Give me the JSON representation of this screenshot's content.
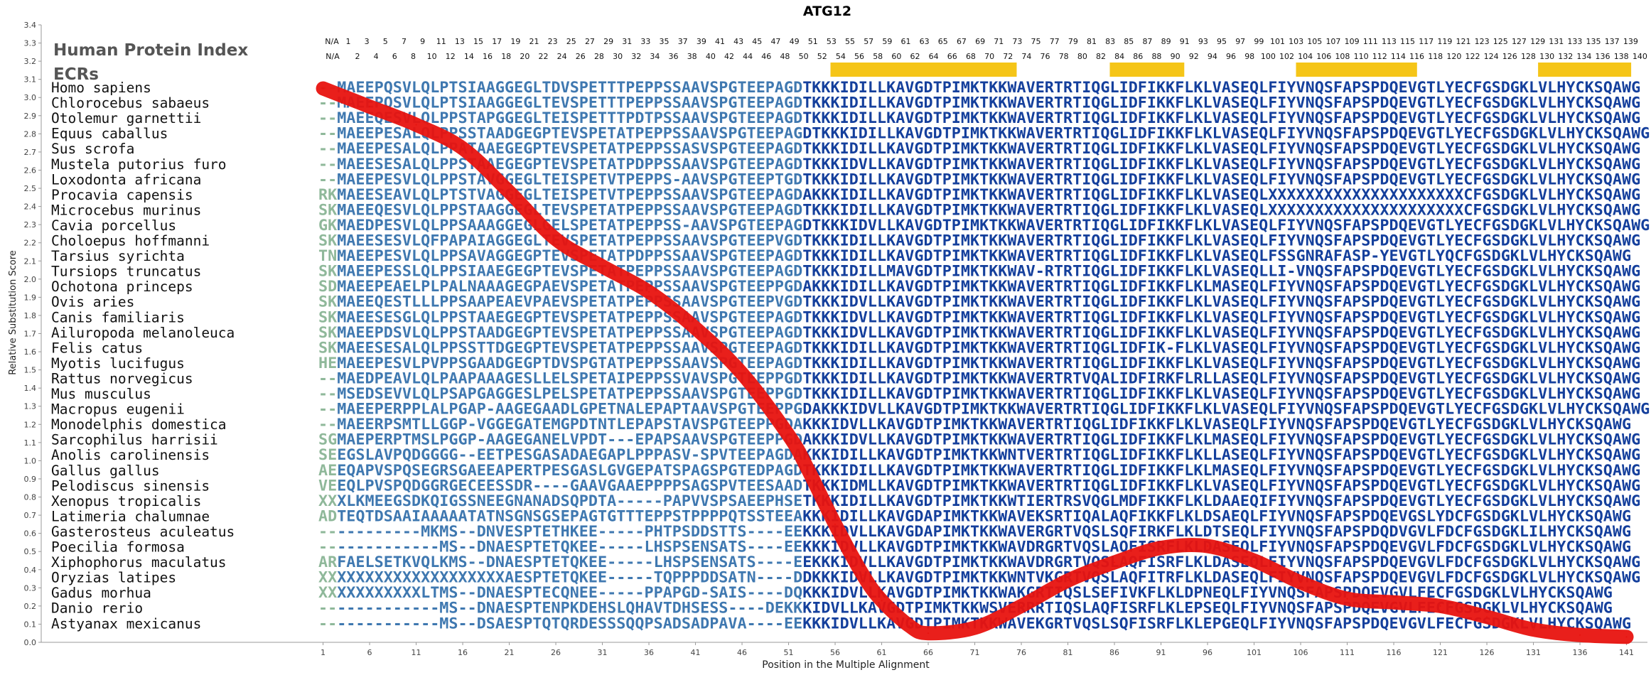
{
  "chart_data": {
    "type": "line",
    "title": "ATG12",
    "xlabel": "Position in the Multiple Alignment",
    "ylabel": "Relative Substitution Score",
    "ylim": [
      0.0,
      3.4
    ],
    "y_ticks": [
      "0.0",
      "0.1",
      "0.2",
      "0.3",
      "0.4",
      "0.5",
      "0.6",
      "0.7",
      "0.8",
      "0.9",
      "1.0",
      "1.1",
      "1.2",
      "1.3",
      "1.4",
      "1.5",
      "1.6",
      "1.7",
      "1.8",
      "1.9",
      "2.0",
      "2.1",
      "2.2",
      "2.3",
      "2.4",
      "2.5",
      "2.6",
      "2.7",
      "2.8",
      "2.9",
      "3.0",
      "3.1",
      "3.2",
      "3.3",
      "3.4"
    ],
    "x_tick_labels": [
      "1",
      "6",
      "11",
      "16",
      "21",
      "26",
      "31",
      "36",
      "41",
      "46",
      "51",
      "56",
      "61",
      "66",
      "71",
      "76",
      "81",
      "86",
      "91",
      "96",
      "101",
      "106",
      "111",
      "116",
      "121",
      "126",
      "131",
      "136",
      "141"
    ],
    "alignment_length": 141,
    "header_index_label": "Human Protein Index",
    "ecr_label": "ECRs",
    "human_index_odd": [
      "N/A",
      "1",
      "3",
      "5",
      "7",
      "9",
      "11",
      "13",
      "15",
      "17",
      "19",
      "21",
      "23",
      "25",
      "27",
      "29",
      "31",
      "33",
      "35",
      "37",
      "39",
      "41",
      "43",
      "45",
      "47",
      "49",
      "51",
      "53",
      "55",
      "57",
      "59",
      "61",
      "63",
      "65",
      "67",
      "69",
      "71",
      "73",
      "75",
      "77",
      "79",
      "81",
      "83",
      "85",
      "87",
      "89",
      "91",
      "93",
      "95",
      "97",
      "99",
      "101",
      "103",
      "105",
      "107",
      "109",
      "111",
      "113",
      "115",
      "117",
      "119",
      "121",
      "123",
      "125",
      "127",
      "129",
      "131",
      "133",
      "135",
      "137",
      "139"
    ],
    "human_index_even": [
      "N/A",
      "2",
      "4",
      "6",
      "8",
      "10",
      "12",
      "14",
      "16",
      "18",
      "20",
      "22",
      "24",
      "26",
      "28",
      "30",
      "32",
      "34",
      "36",
      "38",
      "40",
      "42",
      "44",
      "46",
      "48",
      "50",
      "52",
      "54",
      "56",
      "58",
      "60",
      "62",
      "64",
      "66",
      "68",
      "70",
      "72",
      "74",
      "76",
      "78",
      "80",
      "82",
      "84",
      "86",
      "88",
      "90",
      "92",
      "94",
      "96",
      "98",
      "100",
      "102",
      "104",
      "106",
      "108",
      "110",
      "112",
      "114",
      "116",
      "118",
      "120",
      "122",
      "124",
      "126",
      "128",
      "130",
      "132",
      "134",
      "136",
      "138",
      "140"
    ],
    "ecr_regions": [
      [
        56,
        75
      ],
      [
        86,
        93
      ],
      [
        106,
        118
      ],
      [
        132,
        141
      ]
    ],
    "ecr_color": "#f5c518",
    "curve_color": "#e8130f",
    "curve_points": [
      [
        1,
        3.05
      ],
      [
        6,
        2.95
      ],
      [
        11,
        2.85
      ],
      [
        16,
        2.72
      ],
      [
        21,
        2.48
      ],
      [
        26,
        2.22
      ],
      [
        31,
        2.07
      ],
      [
        36,
        1.93
      ],
      [
        41,
        1.73
      ],
      [
        46,
        1.48
      ],
      [
        51,
        1.14
      ],
      [
        53,
        0.96
      ],
      [
        56,
        0.65
      ],
      [
        59,
        0.37
      ],
      [
        61,
        0.23
      ],
      [
        64,
        0.09
      ],
      [
        66,
        0.05
      ],
      [
        71,
        0.08
      ],
      [
        76,
        0.2
      ],
      [
        81,
        0.34
      ],
      [
        86,
        0.44
      ],
      [
        91,
        0.52
      ],
      [
        96,
        0.53
      ],
      [
        101,
        0.45
      ],
      [
        106,
        0.33
      ],
      [
        111,
        0.24
      ],
      [
        116,
        0.22
      ],
      [
        121,
        0.2
      ],
      [
        126,
        0.14
      ],
      [
        131,
        0.07
      ],
      [
        136,
        0.04
      ],
      [
        141,
        0.03
      ]
    ],
    "species": [
      "Homo sapiens",
      "Chlorocebus sabaeus",
      "Otolemur garnettii",
      "Equus caballus",
      "Sus scrofa",
      "Mustela putorius furo",
      "Loxodonta africana",
      "Procavia capensis",
      "Microcebus murinus",
      "Cavia porcellus",
      "Choloepus hoffmanni",
      "Tarsius syrichta",
      "Tursiops truncatus",
      "Ochotona princeps",
      "Ovis aries",
      "Canis familiaris",
      "Ailuropoda melanoleuca",
      "Felis catus",
      "Myotis lucifugus",
      "Rattus norvegicus",
      "Mus musculus",
      "Macropus eugenii",
      "Monodelphis domestica",
      "Sarcophilus harrisii",
      "Anolis carolinensis",
      "Gallus gallus",
      "Pelodiscus sinensis",
      "Xenopus tropicalis",
      "Latimeria chalumnae",
      "Gasterosteus aculeatus",
      "Poecilia formosa",
      "Xiphophorus maculatus",
      "Oryzias latipes",
      "Gadus morhua",
      "Danio rerio",
      "Astyanax mexicanus"
    ],
    "sequences": [
      "--MAEEPQSVLQLPTSIAAGGEGLTDVSPETTTPEPPSSAAVSPGTEEPAGDTKKKIDILLKAVGDTPIMKTKKWAVERTRTIQGLIDFIKKFLKLVASEQLFIYVNQSFAPSPDQEVGTLYECFGSDGKLVLHYCKSQAWG",
      "--MAEEPQSVLQLPTSIAAGGEGLTEVSPETTTPEPPSSAAVSPGTEEPAGDTKKKIDILLKAVGDTPIMKTKKWAVERTRTIQGLIDFIKKFLKLVASEQLFIYVNQSFAPSPDQEVGTLYECFGSDGKLVLHYCKSQAWG",
      "--MAEEQESVLQLPPSTAPGGEGLTEISPETTTPDTPSSAAVSPGTEEPAGDTKKKIDILLKAVGDTPIMKTKKWAVERTRTIQGLIDFIKKFLKLVASEQLFIYVNQSFAPSPDQEVGTLYECFGSDGKLVLHYCKSQAWG",
      "--MAEEPESALQLPPSSTAADGEGPTEVSPETATPEPPSSAAVSPGTEEPAGDTKKKIDILLKAVGDTPIMKTKKWAVERTRTIQGLIDFIKKFLKLVASEQLFIYVNQSFAPSPDQEVGTLYECFGSDGKLVLHYCKSQAWG",
      "--MAEEPESALQLPPATAAEGEGPTEVSPETATPEPPSSASVSPGTEEPAGDTKKKIDILLKAVGDTPIMKTKKWAVERTRTIQGLIDFIKKFLKLVASEQLFIYVNQSFAPSPDQEVGTLYECFGSDGKLVLHYCKSQAWG",
      "--MAEESESALQLPPSTAAEGEGPTEVSPETATPDPPSSAAVSPGTEEPAGDTKKKIDVLLKAVGDTPIMKTKKWAVERTRTIQGLIDFIKKFLKLVASEQLFIYVNQSFAPSPDQEVGTLYECFGSDGKLVLHYCKSQAWG",
      "--MAEEPESVLQLPPSTAVGGEGLTEISPETVTPEPPS-AAVSPGTEEPTGDTKKKIDILLKAVGDTPIMKTKKWAVERTRTIQGLIDFIKKFLKLVASEQLFIYVNQSFAPSPDQEVGTLYECFGSDGKLVLHYCKSQAWG",
      "RKMAEESEAVLQLPTSTVAGGEGLTEISPETVTPEPPSSAAVSPGTEEPAGDAKKKIDILLKAVGDTPIMKTKKWAVERTRTIQGLIDFIKKFLKLVASEQLXXXXXXXXXXXXXXXXXXXXXCFGSDGKLVLHYCKSQAWG",
      "SKMAEEQESVLQLPPSTAAGGEGLTEVSPETATPEPPSSAAVSPGTEEPAGDTKKKIDILLKAVGDTPIMKTKKWAVERTRTIQGLIDFIKKFLKLVASEQLXXXXXXXXXXXXXXXXXXXXXCFGSDGKLVLHYCKSQAWG",
      "GKMAEDPESVLQLPPSAAAGGEGLGELSPETATPEPPSS-AAVSPGTEEPAGDTKKKIDVLLKAVGDTPIMKTKKWAVERTRTIQGLIDFIKKFLKLVASEQLFIYVNQSFAPSPDQEVGTLYECFGSDGKLVLHYCKSQAWG",
      "SKMAEESESVLQFPAPAIAGGEGLTEVSPETATPEPPSSAAVSPGTEEPVGDTKKKIDILLKAVGDTPIMKTKKWAVERTRTIQGLIDFIKKFLKLVASEQLFIYVNQSFAPSPDQEVGTLYECFGSDGKLVLHYCKSQAWG",
      "TNMAEEPESVLQLPPSAVAGGEGPTEVSPETATPDPPSSAAVSPGTEEPAGDTKKKIDILLKAVGDTPIMKTKKWAVERTRTIQGLIDFIKKFLKLVASEQLFSSGNRAFASP-YEVGTLYQCFGSDGKLVLHYCKSQAWG",
      "SKMAEEPESSLQLPPSIAAEGEGPTEVSPETATPEPPSSAAVSPGTEEPAGDTKKKIDILLMAVGDTPIMKTKKWAV-RTRTIQGLIDFIKKFLKLVASEQLLI-VNQSFAPSPDQEVGTLYECFGSDGKLVLHYCKSQAWG",
      "SDMAEEPEAELPLPALNAAAGEGPAEVSPETATPEPPSSAAVSPGTEEPPGDAKKKIDILLKAVGDTPIMKTKKWAVERTRTIQGLIDFIKKFLKLMASEQLFIYVNQSFAPSPDQEVGTLYECFGSDGKLVLHYCKSQAWG",
      "SKMAEEQESTLLLPPSAAPEAEVPAEVSPETATPEPPSSAAVSPGTEEPVGDTKKKIDVLLKAVGDTPIMKTKKWAVERTRTIQGLIDFIKKFLKLVASEQLFIYVNQSFAPSPDQEVGTLYECFGSDGKLVLHYCKSQAWG",
      "SKMAEESESGLQLPPSTAAEGEGPTEVSPETATPEPPSSAAVSPGTEEPAGDTKKKIDVLLKAVGDTPIMKTKKWAVERTRTIQGLIDFIKKFLKLVASEQLFIYVNQSFAPSPDQEVGTLYECFGSDGKLVLHYCKSQAWG",
      "SKMAEEPDSVLQLPPSTAADGEGPTEVSPETATPEPPSSAAVSPGTEEPAGDTKKKIDVLLKAVGDTPIMKTKKWAVERTRTIQGLIDFIKKFLKLVASEQLFIYVNQSFAPSPDQEVGTLYECFGSDGKLVLHYCKSQAWG",
      "SKMAEESESALQLPPSSTTDGEGPTEVSPETATPEPPSSAAVSPGTEEPAGDTKKKIDILLKAVGDTPIMKTKKWAVERTRTIQGLIDFIK-FLKLVASEQLFIYVNQSFAPSPDQEVGTLYECFGSDGKLVLHYCKSQAWG",
      "HEMAEEPESVLPVPPSGAADGEGPTDVSPGTATPEPPSSAAVSPGTEEPAGDTKKKIDILLKAVGDTPIMKTKKWAVERTRTIQGLIDFIKKFLKLVASEQLFIYVNQSFAPSPDQEVGTLYECFGSDGKLVLHYCKSQAWG",
      "--MAEDPEAVLQLPAAPAAAGESLLELSPETAIPEPPSSVAVSPGTEEPPGDTKKKIDILLKAVGDTPIMKTKKWAVERTRTVQALIDFIRKFLRLLASEQLFIYVNQSFAPSPDQEVGTLYECFGSDGKLVLHYCKSQAWG",
      "--MSEDSEVVLQLPSAPGAGGESLPELSPETATPEPPSSAAVSPGTEEPPGDTKKKIDILLKAVGDTPIMKTKKWAVERTRTIQGLIDFIKKFLKLVASEQLFIYVNQSFAPSPDQEVGTLYECFGSDGKLVLHYCKSQAWG",
      "--MAEEPERPPLALPGAP-AAGEGAADLGPETNALEPAPTAAVSPGTEEPPGDAKKKIDVLLKAVGDTPIMKTKKWAVERTRTIQGLIDFIKKFLKLVASEQLFIYVNQSFAPSPDQEVGTLYECFGSDGKLVLHYCKSQAWG",
      "--MAEERPSMTLLGGP-VGGEGATEMGPDTNTLEPAPSTAVSPGTEEPPGDAKKKIDVLLKAVGDTPIMKTKKWAVERTRTIQGLIDFIKKFLKLVASEQLFIYVNQSFAPSPDQEVGTLYECFGSDGKLVLHYCKSQAWG",
      "SGMAEPERPTMSLPGGP-AAGEGANELVPDT---EPAPSAAVSPGTEEPPGDAKKKIDVLLKAVGDTPIMKTKKWAVERTRTIQGLIDFIKKFLKLMASEQLFIYVNQSFAPSPDQEVGTLYECFGSDGKLVLHYCKSQAWG",
      "SEEGSLAVPQDGGGG--EETPESGASADAEGAPLPPPASV-SPVTEEPAGDAKKKIDILLKAVGDTPIMKTKKWNTVERTRTIQGLIDFIKKFLKLLASEQLFIYVNQSFAPSPDQEVGTLYECFGSDGKLVLHYCKSQAWG",
      "AEEQAPVSPQSEGRSGAEEAPERTPESGASLGVGEPATSPAGSPGTEDPAGDTKKKIDILLKAVGDTPIMKTKKWAVERTRTIQGLIDFIKKFLKLMASEQLFIYVNQSFAPSPDQEVGTLYECFGSDGKLVLHYCKSQAWG",
      "VEEQLPVSPQDGGRGECEESSDR----GAAVGAAEPPPPSAGSPVTEESAADTKKKIDMLLKAVGDTPIMKTKKWAVERTRTIQGLIDFIKKFLKLVASEQLFIYVNQSFAPSPDQEVGTLYECFGSDGKLVLHYCKSQAWG",
      "XXXLKMEEGSDKQIGSSNEEGNANADSQPDTA-----PAPVVSPSAEEPHSETKKKIDILLKAVGDTPIMKTKKWTIERTRSVQGLMDFIKKFLKLDAAEQIFIYVNQSFAPSPDQEVGTLYECFGSDGKLVLHYCKSQAWG",
      "ADTEQTDSAAIAAAAATATNSGNSGSEPAGTGTTTEPPSTPPPPQTSSTEEAKKKIDILLKAVGDAPIMKTKKWAVEKSRTIQALAQFIKKFLKLDSAEQLFIYVNQSFAPSPDQEVGSLYDCFGSDGKLVLHYCKSQAWG",
      "-----------MKMS--DNVESPTETHKEE-----PHTPSDDSTTS----EEKKKIDVLLKAVGDAPIMKTKKWAVERGRTVQSLSQFIRKFLKLDTSEQLFIYVNQSFAPSPDQDVGVLFDCFGSDGKLILHYCKSQAWG",
      "-------------MS--DNAESPTETQKEE-----LHSPSENSATS----EEKKKIDVLLKAVGDTPIMKTKKWAVDRGRTVQSLAQFISRFLKLDASEQLFIYVNQSFAPSPDQEVGVLFDCFGSDGKLVLHYCKSQAWG",
      "ARFAELSETKVQLKMS--DNAESPTETQKEE-----LHSPSENSATS----EEKKKIDVLLKAVGDTPIMKTKKWAVDRGRTVQSLAQFISRFLKLDASEQLFIYVNQSFAPSPDQEVGVLFDCFGSDGKLVLHYCKSQAWG",
      "XXXXXXXXXXXXXXXXXXXXAESPTETQKEE-----TQPPPDDSATN----DDKKKIDVLLKAVGDTPIMKTKKWNTVKGRTVQSLAQFITRFLKLDASEQLFIYVNQSFAPSPDQEVGVLFDCFGSDGKLVLHYCKSQAWG",
      "XXXXXXXXXXXLTMS--DNAESPTECQNEE-----PPAPGD-SAIS----DQKKKIDVLLKAVGDTPIMKTKKWAKGRTIQSLSEFIVKFLKLDPNEQLFIYVNQSFAPSPDQEVGVLFECFGSDGKLVLHYCKSQAWG",
      "-------------MS--DNAESPTENPKDEHSLQHAVTDHSESS----DEKKKIDVLLKAVGDTPIMKTKKWSVERRRTIQSLAQFISRFLKLEPSEQLFIYVNQSFAPSPDQEVGVLFECFGSDGKLVLHYCKSQAWG",
      "-------------MS--DSAESPTQTQRDESSSQQPSADSADPAVA----EEKKKIDVLLKAVGDTPIMKTKKWAVEKGRTVQSLSQFISRFLKLEPGEQLFIYVNQSFAPSPDQEVGVLFECFGSDGKLVLHYCKSQAWG"
    ]
  }
}
